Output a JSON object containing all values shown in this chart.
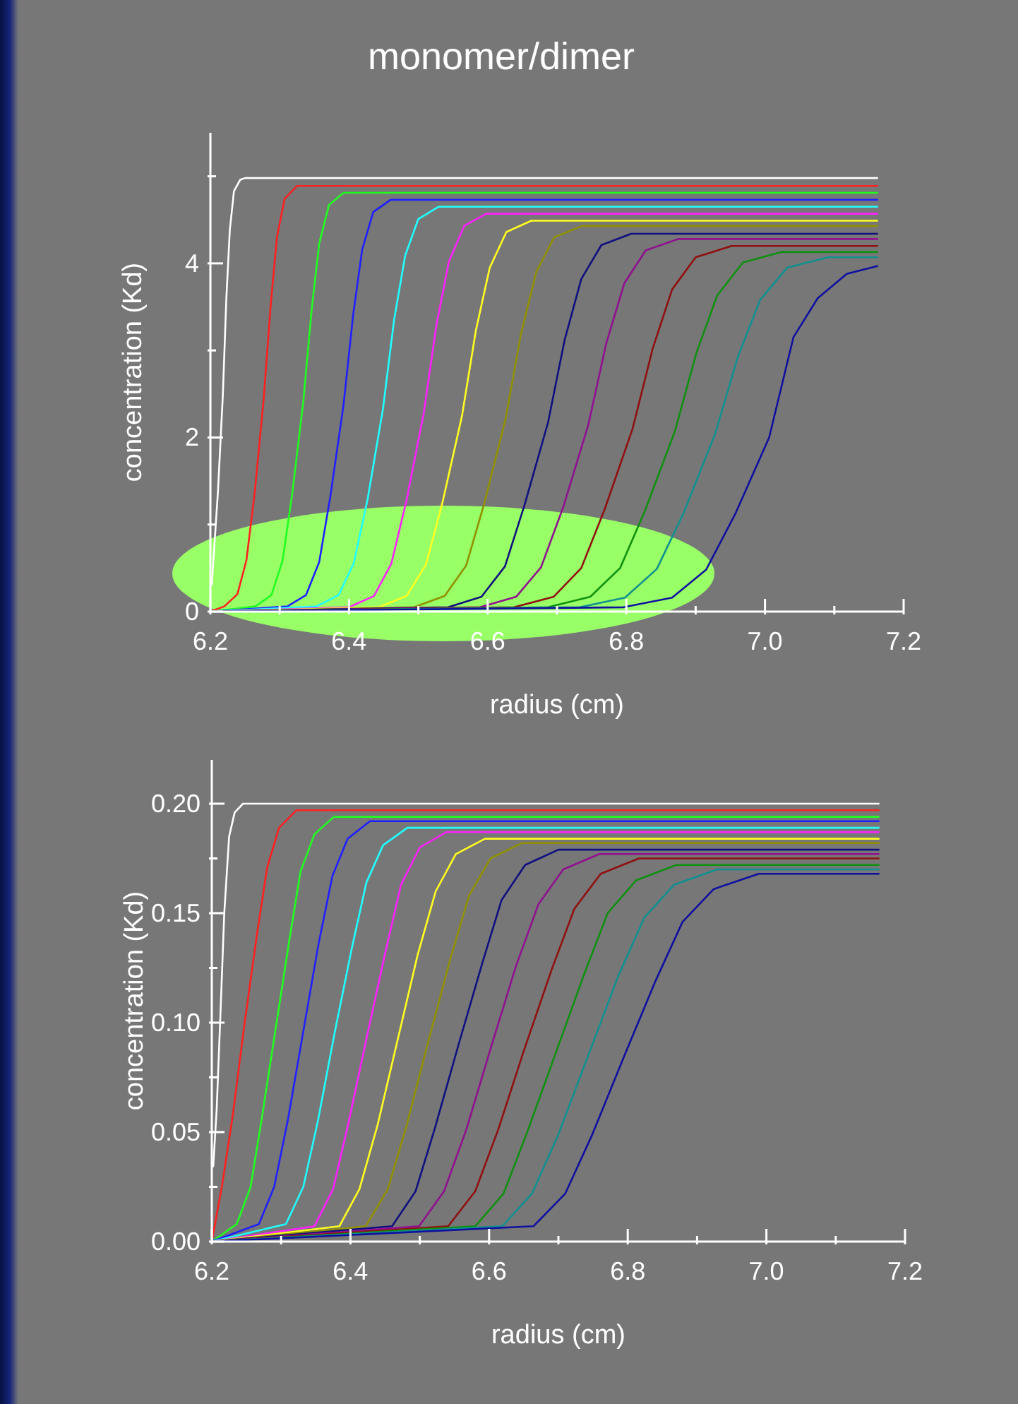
{
  "chart_data": [
    {
      "type": "line",
      "title": "monomer/dimer",
      "xlabel": "radius (cm)",
      "ylabel": "concentration (Kd)",
      "xlim": [
        6.2,
        7.2
      ],
      "ylim": [
        0,
        5.5
      ],
      "xticks": [
        {
          "value": 6.2,
          "label": "6.2"
        },
        {
          "value": 6.3,
          "label": null
        },
        {
          "value": 6.4,
          "label": "6.4"
        },
        {
          "value": 6.5,
          "label": null
        },
        {
          "value": 6.6,
          "label": "6.6"
        },
        {
          "value": 6.7,
          "label": null
        },
        {
          "value": 6.8,
          "label": "6.8"
        },
        {
          "value": 6.9,
          "label": null
        },
        {
          "value": 7,
          "label": "7.0"
        },
        {
          "value": 7.1,
          "label": null
        },
        {
          "value": 7.2,
          "label": "7.2"
        }
      ],
      "yticks": [
        0,
        {
          "value": 1,
          "label": null
        },
        2,
        {
          "value": 3,
          "label": null
        },
        4,
        {
          "value": 5,
          "label": null
        }
      ],
      "grid": false,
      "legend": false,
      "marker": "none",
      "line_style": "solid",
      "series": [
        {
          "color": "#ffffff",
          "x": [
            6.202,
            6.211,
            6.218,
            6.223,
            6.228,
            6.234,
            6.243,
            6.25,
            7.163
          ],
          "values": [
            0.3,
            1.39,
            2.49,
            3.59,
            4.38,
            4.83,
            4.96,
            4.98,
            4.98
          ]
        },
        {
          "color": "#ff2020",
          "x": [
            6.2,
            6.22,
            6.239,
            6.252,
            6.264,
            6.277,
            6.287,
            6.296,
            6.307,
            6.325,
            7.163
          ],
          "values": [
            0,
            0.06,
            0.2,
            0.59,
            1.37,
            2.45,
            3.52,
            4.3,
            4.74,
            4.89,
            4.89
          ]
        },
        {
          "color": "#20ff20",
          "x": [
            6.2,
            6.265,
            6.288,
            6.304,
            6.318,
            6.334,
            6.346,
            6.357,
            6.371,
            6.392,
            7.163
          ],
          "values": [
            0,
            0.06,
            0.19,
            0.58,
            1.35,
            2.41,
            3.46,
            4.23,
            4.67,
            4.81,
            4.81
          ]
        },
        {
          "color": "#2020ff",
          "x": [
            6.2,
            6.311,
            6.338,
            6.357,
            6.373,
            6.392,
            6.406,
            6.419,
            6.435,
            6.46,
            7.163
          ],
          "values": [
            0,
            0.06,
            0.19,
            0.57,
            1.32,
            2.37,
            3.41,
            4.16,
            4.59,
            4.73,
            4.73
          ]
        },
        {
          "color": "#20ffff",
          "x": [
            6.2,
            6.353,
            6.385,
            6.407,
            6.427,
            6.449,
            6.465,
            6.481,
            6.5,
            6.529,
            7.163
          ],
          "values": [
            0,
            0.06,
            0.19,
            0.56,
            1.3,
            2.33,
            3.35,
            4.09,
            4.51,
            4.65,
            4.65
          ]
        },
        {
          "color": "#ff20ff",
          "x": [
            6.2,
            6.4,
            6.436,
            6.461,
            6.483,
            6.508,
            6.526,
            6.544,
            6.566,
            6.598,
            7.163
          ],
          "values": [
            0,
            0.05,
            0.18,
            0.55,
            1.28,
            2.29,
            3.29,
            4.02,
            4.43,
            4.57,
            4.57
          ]
        },
        {
          "color": "#ffff20",
          "x": [
            6.2,
            6.443,
            6.483,
            6.511,
            6.535,
            6.563,
            6.583,
            6.603,
            6.627,
            6.663,
            7.163
          ],
          "values": [
            0,
            0.05,
            0.18,
            0.54,
            1.26,
            2.25,
            3.23,
            3.95,
            4.36,
            4.49,
            4.49
          ]
        },
        {
          "color": "#909000",
          "x": [
            6.2,
            6.494,
            6.538,
            6.569,
            6.595,
            6.626,
            6.648,
            6.67,
            6.696,
            6.736,
            7.163
          ],
          "values": [
            0,
            0.05,
            0.18,
            0.53,
            1.24,
            2.22,
            3.19,
            3.9,
            4.3,
            4.43,
            4.43
          ]
        },
        {
          "color": "#101080",
          "x": [
            6.2,
            6.543,
            6.591,
            6.625,
            6.653,
            6.687,
            6.711,
            6.735,
            6.764,
            6.807,
            7.163
          ],
          "values": [
            0,
            0.05,
            0.17,
            0.52,
            1.22,
            2.17,
            3.12,
            3.82,
            4.21,
            4.34,
            4.34
          ]
        },
        {
          "color": "#901090",
          "x": [
            6.2,
            6.589,
            6.641,
            6.677,
            6.709,
            6.745,
            6.771,
            6.797,
            6.828,
            6.875,
            7.163
          ],
          "values": [
            0,
            0.05,
            0.17,
            0.51,
            1.2,
            2.14,
            3.08,
            3.77,
            4.15,
            4.28,
            4.28
          ]
        },
        {
          "color": "#901010",
          "x": [
            6.2,
            6.638,
            6.695,
            6.735,
            6.769,
            6.809,
            6.838,
            6.866,
            6.9,
            6.952,
            7.163
          ],
          "values": [
            0,
            0.05,
            0.17,
            0.5,
            1.18,
            2.1,
            3.02,
            3.7,
            4.07,
            4.2,
            4.2
          ]
        },
        {
          "color": "#109010",
          "x": [
            6.2,
            6.687,
            6.748,
            6.791,
            6.827,
            6.87,
            6.901,
            6.931,
            6.968,
            7.023,
            7.163
          ],
          "values": [
            0,
            0.05,
            0.17,
            0.5,
            1.16,
            2.07,
            2.97,
            3.63,
            4.01,
            4.13,
            4.13
          ]
        },
        {
          "color": "#109090",
          "x": [
            6.2,
            6.733,
            6.798,
            6.844,
            6.883,
            6.928,
            6.961,
            6.993,
            7.032,
            7.091,
            7.163
          ],
          "values": [
            0,
            0.05,
            0.16,
            0.49,
            1.14,
            2.04,
            2.93,
            3.58,
            3.95,
            4.07,
            4.07
          ]
        },
        {
          "color": "#1010a0",
          "x": [
            6.2,
            6.796,
            6.866,
            6.915,
            6.957,
            7.006,
            7.041,
            7.076,
            7.118,
            7.163
          ],
          "values": [
            0,
            0.05,
            0.16,
            0.48,
            1.12,
            2,
            3.15,
            3.6,
            3.88,
            3.97
          ]
        }
      ]
    },
    {
      "type": "line",
      "xlabel": "radius (cm)",
      "ylabel": "concentration (Kd)",
      "xlim": [
        6.2,
        7.2
      ],
      "ylim": [
        0,
        0.22
      ],
      "xticks": [
        {
          "value": 6.2,
          "label": "6.2"
        },
        {
          "value": 6.3,
          "label": null
        },
        {
          "value": 6.4,
          "label": "6.4"
        },
        {
          "value": 6.5,
          "label": null
        },
        {
          "value": 6.6,
          "label": "6.6"
        },
        {
          "value": 6.7,
          "label": null
        },
        {
          "value": 6.8,
          "label": "6.8"
        },
        {
          "value": 6.9,
          "label": null
        },
        {
          "value": 7,
          "label": "7.0"
        },
        {
          "value": 7.1,
          "label": null
        },
        {
          "value": 7.2,
          "label": "7.2"
        }
      ],
      "yticks": [
        {
          "value": 0,
          "label": "0.00"
        },
        {
          "value": 0.025,
          "label": null
        },
        {
          "value": 0.05,
          "label": "0.05"
        },
        {
          "value": 0.075,
          "label": null
        },
        {
          "value": 0.1,
          "label": "0.10"
        },
        {
          "value": 0.125,
          "label": null
        },
        {
          "value": 0.15,
          "label": "0.15"
        },
        {
          "value": 0.175,
          "label": null
        },
        {
          "value": 0.2,
          "label": "0.20"
        }
      ],
      "grid": false,
      "legend": false,
      "marker": "none",
      "line_style": "solid",
      "series": [
        {
          "color": "#ffffff",
          "x": [
            6.202,
            6.207,
            6.212,
            6.218,
            6.225,
            6.233,
            6.245,
            7.163
          ],
          "values": [
            0.034,
            0.06,
            0.1,
            0.15,
            0.185,
            0.196,
            0.2,
            0.2
          ]
        },
        {
          "color": "#ff2020",
          "x": [
            6.2,
            6.215,
            6.23,
            6.247,
            6.265,
            6.28,
            6.297,
            6.322,
            7.163
          ],
          "values": [
            0,
            0.026,
            0.057,
            0.099,
            0.14,
            0.171,
            0.189,
            0.197,
            0.197
          ]
        },
        {
          "color": "#20ff20",
          "x": [
            6.2,
            6.236,
            6.256,
            6.272,
            6.292,
            6.312,
            6.328,
            6.348,
            6.376,
            7.163
          ],
          "values": [
            0,
            0.008,
            0.025,
            0.056,
            0.097,
            0.138,
            0.169,
            0.186,
            0.194,
            0.194
          ]
        },
        {
          "color": "#2020ff",
          "x": [
            6.2,
            6.268,
            6.29,
            6.31,
            6.332,
            6.354,
            6.374,
            6.396,
            6.428,
            7.163
          ],
          "values": [
            0,
            0.008,
            0.025,
            0.056,
            0.096,
            0.136,
            0.167,
            0.184,
            0.192,
            0.192
          ]
        },
        {
          "color": "#20ffff",
          "x": [
            6.2,
            6.307,
            6.332,
            6.353,
            6.377,
            6.402,
            6.423,
            6.447,
            6.482,
            7.163
          ],
          "values": [
            0,
            0.008,
            0.025,
            0.055,
            0.095,
            0.134,
            0.164,
            0.181,
            0.189,
            0.189
          ]
        },
        {
          "color": "#ff20ff",
          "x": [
            6.2,
            6.348,
            6.375,
            6.397,
            6.424,
            6.451,
            6.473,
            6.5,
            6.538,
            7.163
          ],
          "values": [
            0,
            0.007,
            0.024,
            0.054,
            0.094,
            0.133,
            0.163,
            0.18,
            0.187,
            0.187
          ]
        },
        {
          "color": "#ffff20",
          "x": [
            6.2,
            6.384,
            6.413,
            6.439,
            6.468,
            6.497,
            6.523,
            6.552,
            6.594,
            7.163
          ],
          "values": [
            0,
            0.007,
            0.024,
            0.053,
            0.092,
            0.131,
            0.16,
            0.177,
            0.184,
            0.184
          ]
        },
        {
          "color": "#909000",
          "x": [
            6.2,
            6.422,
            6.454,
            6.481,
            6.512,
            6.544,
            6.571,
            6.602,
            6.647,
            7.163
          ],
          "values": [
            0,
            0.007,
            0.024,
            0.053,
            0.091,
            0.129,
            0.158,
            0.175,
            0.182,
            0.182
          ]
        },
        {
          "color": "#101080",
          "x": [
            6.2,
            6.46,
            6.494,
            6.522,
            6.556,
            6.59,
            6.618,
            6.652,
            6.7,
            7.163
          ],
          "values": [
            0,
            0.007,
            0.023,
            0.052,
            0.09,
            0.127,
            0.156,
            0.172,
            0.179,
            0.179
          ]
        },
        {
          "color": "#901090",
          "x": [
            6.2,
            6.499,
            6.535,
            6.567,
            6.603,
            6.639,
            6.671,
            6.707,
            6.759,
            7.163
          ],
          "values": [
            0,
            0.007,
            0.023,
            0.051,
            0.089,
            0.126,
            0.154,
            0.17,
            0.177,
            0.177
          ]
        },
        {
          "color": "#901010",
          "x": [
            6.2,
            6.541,
            6.58,
            6.613,
            6.651,
            6.69,
            6.723,
            6.761,
            6.816,
            7.163
          ],
          "values": [
            0,
            0.007,
            0.023,
            0.051,
            0.088,
            0.124,
            0.152,
            0.168,
            0.175,
            0.175
          ]
        },
        {
          "color": "#109010",
          "x": [
            6.2,
            6.58,
            6.621,
            6.655,
            6.696,
            6.737,
            6.771,
            6.812,
            6.87,
            7.163
          ],
          "values": [
            0,
            0.007,
            0.022,
            0.05,
            0.086,
            0.122,
            0.15,
            0.165,
            0.172,
            0.172
          ]
        },
        {
          "color": "#109090",
          "x": [
            6.2,
            6.619,
            6.662,
            6.7,
            6.743,
            6.786,
            6.824,
            6.867,
            6.929,
            7.163
          ],
          "values": [
            0,
            0.007,
            0.022,
            0.049,
            0.085,
            0.121,
            0.148,
            0.163,
            0.17,
            0.17
          ]
        },
        {
          "color": "#1010a0",
          "x": [
            6.2,
            6.664,
            6.71,
            6.749,
            6.794,
            6.84,
            6.879,
            6.924,
            6.989,
            7.163
          ],
          "values": [
            0,
            0.007,
            0.022,
            0.049,
            0.084,
            0.119,
            0.146,
            0.161,
            0.168,
            0.168
          ]
        }
      ]
    }
  ]
}
